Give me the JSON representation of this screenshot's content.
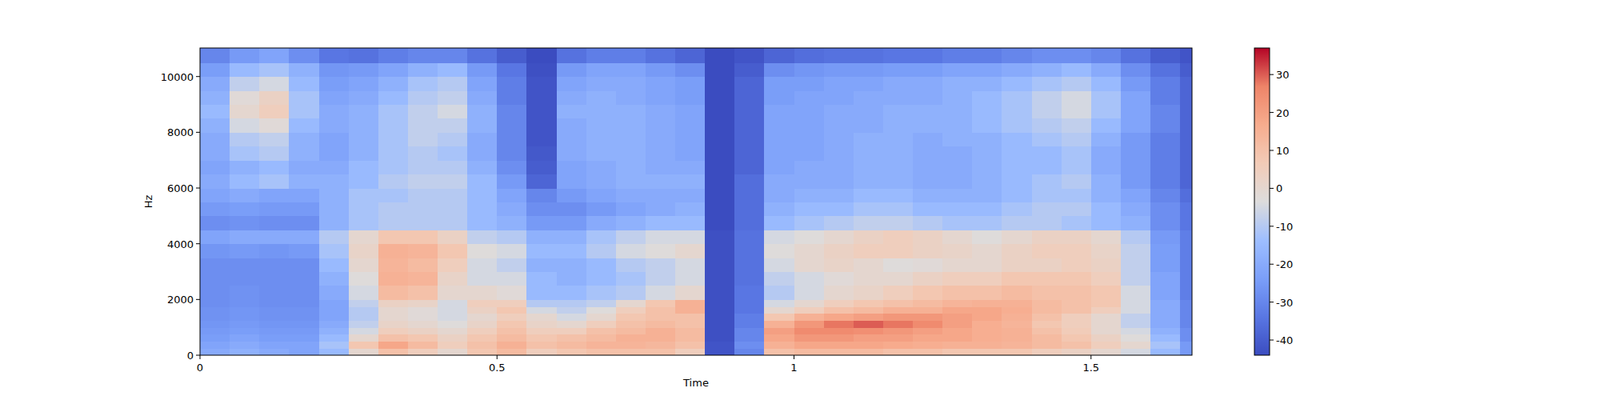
{
  "chart_data": {
    "type": "heatmap",
    "xlabel": "Time",
    "ylabel": "Hz",
    "xlim": [
      0,
      1.67
    ],
    "ylim": [
      0,
      11025
    ],
    "xticks": [
      0,
      0.5,
      1,
      1.5
    ],
    "yticks": [
      0,
      2000,
      4000,
      6000,
      8000,
      10000
    ],
    "colorbar_lim": [
      -44,
      37
    ],
    "colorbar_ticks": [
      -40,
      -30,
      -20,
      -10,
      0,
      10,
      20,
      30
    ],
    "x": [
      0,
      0.05,
      0.1,
      0.15,
      0.2,
      0.25,
      0.3,
      0.35,
      0.4,
      0.45,
      0.5,
      0.55,
      0.6,
      0.65,
      0.7,
      0.75,
      0.8,
      0.85,
      0.9,
      0.95,
      1.0,
      1.05,
      1.1,
      1.15,
      1.2,
      1.25,
      1.3,
      1.35,
      1.4,
      1.45,
      1.5,
      1.55,
      1.6,
      1.65
    ],
    "y": [
      0,
      250,
      500,
      750,
      1000,
      1250,
      1500,
      1750,
      2000,
      2500,
      3000,
      3500,
      4000,
      4500,
      5000,
      5500,
      6000,
      6500,
      7000,
      7500,
      8000,
      8500,
      9000,
      9500,
      10000,
      10500
    ],
    "z": [
      [
        -20,
        -18,
        -20,
        -22,
        -15,
        0,
        10,
        5,
        0,
        8,
        12,
        5,
        8,
        10,
        10,
        10,
        5,
        -42,
        -30,
        10,
        12,
        12,
        12,
        10,
        10,
        8,
        8,
        8,
        5,
        3,
        0,
        -5,
        -15,
        -25
      ],
      [
        -22,
        -20,
        -22,
        -22,
        -12,
        8,
        18,
        12,
        5,
        10,
        15,
        10,
        12,
        14,
        14,
        13,
        10,
        -42,
        -28,
        15,
        18,
        18,
        18,
        17,
        16,
        15,
        15,
        14,
        12,
        10,
        5,
        0,
        -12,
        -25
      ],
      [
        -24,
        -22,
        -24,
        -24,
        -15,
        0,
        10,
        8,
        3,
        8,
        12,
        8,
        10,
        12,
        15,
        15,
        12,
        -43,
        -30,
        18,
        22,
        22,
        20,
        20,
        18,
        18,
        16,
        15,
        12,
        8,
        3,
        -3,
        -15,
        -28
      ],
      [
        -25,
        -24,
        -25,
        -25,
        -18,
        -5,
        5,
        3,
        0,
        5,
        10,
        5,
        5,
        10,
        12,
        15,
        12,
        -43,
        -30,
        20,
        25,
        25,
        24,
        22,
        20,
        18,
        16,
        15,
        10,
        6,
        0,
        -5,
        -18,
        -28
      ],
      [
        -26,
        -25,
        -26,
        -26,
        -20,
        -8,
        2,
        0,
        -3,
        2,
        8,
        2,
        0,
        5,
        10,
        12,
        10,
        -43,
        -32,
        15,
        22,
        28,
        30,
        28,
        25,
        20,
        16,
        14,
        8,
        5,
        0,
        -8,
        -20,
        -30
      ],
      [
        -27,
        -26,
        -27,
        -27,
        -22,
        -10,
        0,
        -2,
        -5,
        0,
        5,
        0,
        -5,
        0,
        8,
        10,
        10,
        -43,
        -32,
        8,
        15,
        18,
        20,
        22,
        22,
        20,
        18,
        15,
        10,
        5,
        0,
        -8,
        -20,
        -30
      ],
      [
        -27,
        -26,
        -27,
        -27,
        -22,
        -10,
        0,
        -2,
        -5,
        3,
        8,
        -5,
        -8,
        -3,
        5,
        10,
        15,
        -43,
        -34,
        0,
        5,
        10,
        12,
        15,
        15,
        18,
        18,
        16,
        12,
        10,
        5,
        -5,
        -20,
        -30
      ],
      [
        -28,
        -27,
        -28,
        -28,
        -22,
        -8,
        3,
        2,
        -5,
        5,
        5,
        -10,
        -10,
        -8,
        0,
        8,
        15,
        -43,
        -34,
        -5,
        0,
        5,
        8,
        10,
        12,
        14,
        15,
        15,
        12,
        10,
        8,
        -5,
        -20,
        -30
      ],
      [
        -28,
        -27,
        -28,
        -28,
        -20,
        -5,
        12,
        10,
        0,
        0,
        -2,
        -15,
        -15,
        -12,
        -10,
        -5,
        0,
        -43,
        -34,
        -10,
        -5,
        0,
        2,
        5,
        8,
        10,
        10,
        12,
        10,
        10,
        8,
        -5,
        -22,
        -32
      ],
      [
        -28,
        -28,
        -28,
        -28,
        -18,
        -3,
        15,
        14,
        2,
        -5,
        -5,
        -15,
        -18,
        -15,
        -12,
        -8,
        -5,
        -43,
        -35,
        -8,
        -5,
        -2,
        0,
        0,
        3,
        5,
        5,
        8,
        8,
        8,
        5,
        -8,
        -22,
        -32
      ],
      [
        -28,
        -28,
        -28,
        -28,
        -15,
        0,
        14,
        12,
        5,
        -5,
        -8,
        -18,
        -18,
        -15,
        -10,
        -8,
        -5,
        -43,
        -35,
        -5,
        0,
        2,
        0,
        -3,
        -2,
        0,
        0,
        3,
        3,
        5,
        3,
        -8,
        -24,
        -32
      ],
      [
        -26,
        -25,
        -26,
        -25,
        -12,
        2,
        15,
        14,
        8,
        -3,
        -5,
        -15,
        -15,
        -10,
        -5,
        -3,
        0,
        -43,
        -35,
        -3,
        0,
        3,
        5,
        5,
        3,
        2,
        0,
        3,
        5,
        5,
        2,
        -8,
        -24,
        -32
      ],
      [
        -22,
        -20,
        -20,
        -20,
        -10,
        0,
        8,
        8,
        3,
        -8,
        -10,
        -18,
        -18,
        -12,
        -8,
        -5,
        -5,
        -43,
        -35,
        -5,
        -3,
        0,
        3,
        5,
        3,
        0,
        -3,
        0,
        3,
        3,
        0,
        -10,
        -25,
        -32
      ],
      [
        -28,
        -27,
        -28,
        -28,
        -18,
        -12,
        -10,
        -10,
        -10,
        -15,
        -18,
        -25,
        -25,
        -20,
        -18,
        -15,
        -15,
        -44,
        -36,
        -15,
        -12,
        -10,
        -8,
        -8,
        -10,
        -12,
        -12,
        -10,
        -10,
        -12,
        -15,
        -18,
        -28,
        -34
      ],
      [
        -25,
        -24,
        -25,
        -25,
        -18,
        -12,
        -10,
        -10,
        -10,
        -15,
        -20,
        -28,
        -28,
        -25,
        -22,
        -20,
        -18,
        -44,
        -36,
        -18,
        -15,
        -15,
        -12,
        -12,
        -15,
        -15,
        -15,
        -12,
        -10,
        -10,
        -15,
        -20,
        -28,
        -34
      ],
      [
        -22,
        -20,
        -22,
        -22,
        -18,
        -12,
        -12,
        -10,
        -10,
        -15,
        -22,
        -30,
        -25,
        -22,
        -20,
        -20,
        -20,
        -44,
        -36,
        -20,
        -18,
        -18,
        -15,
        -15,
        -18,
        -18,
        -18,
        -15,
        -12,
        -12,
        -18,
        -22,
        -30,
        -36
      ],
      [
        -20,
        -15,
        -12,
        -18,
        -18,
        -15,
        -10,
        -8,
        -8,
        -15,
        -25,
        -38,
        -22,
        -20,
        -18,
        -18,
        -18,
        -44,
        -36,
        -20,
        -20,
        -20,
        -18,
        -18,
        -20,
        -20,
        -18,
        -15,
        -12,
        -10,
        -18,
        -25,
        -32,
        -38
      ],
      [
        -22,
        -18,
        -15,
        -20,
        -20,
        -15,
        -12,
        -10,
        -10,
        -18,
        -28,
        -40,
        -22,
        -20,
        -18,
        -20,
        -20,
        -44,
        -38,
        -22,
        -20,
        -20,
        -18,
        -18,
        -20,
        -20,
        -18,
        -15,
        -15,
        -12,
        -20,
        -25,
        -32,
        -38
      ],
      [
        -20,
        -12,
        -10,
        -18,
        -22,
        -18,
        -12,
        -10,
        -12,
        -20,
        -30,
        -41,
        -20,
        -18,
        -18,
        -20,
        -22,
        -44,
        -38,
        -22,
        -22,
        -20,
        -18,
        -18,
        -20,
        -20,
        -18,
        -15,
        -15,
        -12,
        -20,
        -25,
        -32,
        -38
      ],
      [
        -20,
        -10,
        -8,
        -18,
        -22,
        -18,
        -12,
        -8,
        -10,
        -20,
        -30,
        -42,
        -20,
        -18,
        -18,
        -20,
        -22,
        -44,
        -38,
        -22,
        -22,
        -20,
        -18,
        -18,
        -20,
        -18,
        -18,
        -15,
        -12,
        -10,
        -18,
        -25,
        -32,
        -38
      ],
      [
        -18,
        -5,
        -2,
        -15,
        -20,
        -18,
        -12,
        -8,
        -8,
        -18,
        -30,
        -42,
        -20,
        -18,
        -18,
        -20,
        -22,
        -44,
        -38,
        -22,
        -22,
        -20,
        -20,
        -18,
        -18,
        -18,
        -15,
        -12,
        -10,
        -8,
        -15,
        -22,
        -30,
        -38
      ],
      [
        -15,
        0,
        5,
        -12,
        -20,
        -18,
        -12,
        -8,
        -5,
        -18,
        -30,
        -42,
        -18,
        -18,
        -18,
        -20,
        -22,
        -44,
        -38,
        -22,
        -22,
        -20,
        -20,
        -18,
        -18,
        -18,
        -15,
        -12,
        -8,
        -5,
        -12,
        -22,
        -30,
        -38
      ],
      [
        -18,
        -2,
        3,
        -12,
        -22,
        -20,
        -15,
        -10,
        -8,
        -20,
        -32,
        -42,
        -20,
        -18,
        -20,
        -22,
        -24,
        -44,
        -38,
        -24,
        -22,
        -22,
        -20,
        -20,
        -20,
        -18,
        -15,
        -12,
        -8,
        -5,
        -12,
        -22,
        -32,
        -38
      ],
      [
        -20,
        -8,
        -5,
        -15,
        -24,
        -22,
        -18,
        -12,
        -10,
        -22,
        -32,
        -42,
        -22,
        -20,
        -20,
        -22,
        -24,
        -44,
        -38,
        -24,
        -24,
        -22,
        -22,
        -20,
        -20,
        -18,
        -18,
        -15,
        -12,
        -10,
        -15,
        -25,
        -32,
        -38
      ],
      [
        -24,
        -15,
        -12,
        -18,
        -26,
        -25,
        -22,
        -18,
        -15,
        -25,
        -34,
        -43,
        -25,
        -22,
        -22,
        -25,
        -28,
        -44,
        -40,
        -28,
        -26,
        -25,
        -25,
        -24,
        -24,
        -22,
        -22,
        -20,
        -18,
        -15,
        -20,
        -28,
        -35,
        -40
      ],
      [
        -30,
        -25,
        -22,
        -28,
        -34,
        -35,
        -32,
        -30,
        -30,
        -35,
        -40,
        -44,
        -35,
        -32,
        -32,
        -35,
        -38,
        -44,
        -42,
        -38,
        -36,
        -35,
        -35,
        -34,
        -34,
        -32,
        -32,
        -30,
        -28,
        -28,
        -30,
        -35,
        -40,
        -42
      ]
    ]
  }
}
